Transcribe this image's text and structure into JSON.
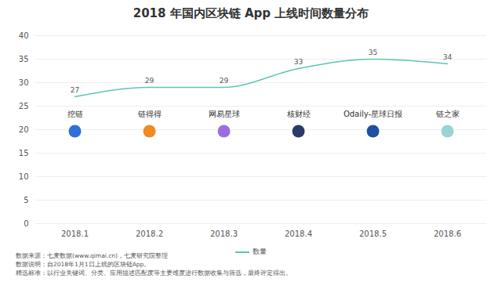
{
  "chart_data": {
    "type": "line",
    "title": "2018 年国内区块链 App 上线时间数量分布",
    "categories": [
      "2018.1",
      "2018.2",
      "2018.3",
      "2018.4",
      "2018.5",
      "2018.6"
    ],
    "series": [
      {
        "name": "数量",
        "color": "#5cc6b2",
        "values": [
          27,
          29,
          29,
          33,
          35,
          34
        ]
      }
    ],
    "ylim": [
      0,
      40
    ],
    "yticks": [
      0,
      5,
      10,
      15,
      20,
      25,
      30,
      35,
      40
    ],
    "grid": true,
    "data_labels": true,
    "legend": "bottom",
    "annotations": [
      {
        "category": "2018.1",
        "text": "挖链"
      },
      {
        "category": "2018.2",
        "text": "链得得"
      },
      {
        "category": "2018.3",
        "text": "网易星球"
      },
      {
        "category": "2018.4",
        "text": "核财经"
      },
      {
        "category": "2018.5",
        "text": "Odaily-星球日报"
      },
      {
        "category": "2018.6",
        "text": "链之家"
      }
    ],
    "notes": [
      "数据来源：七麦数据(www.qimai.cn)，七麦研究院整理",
      "数据说明：自2018年1月1日上线的区块链App。",
      "精选标准：以行业关键词、分类、应用描述匹配度等主要维度进行数据收集与筛选，最终评定得出。"
    ]
  }
}
